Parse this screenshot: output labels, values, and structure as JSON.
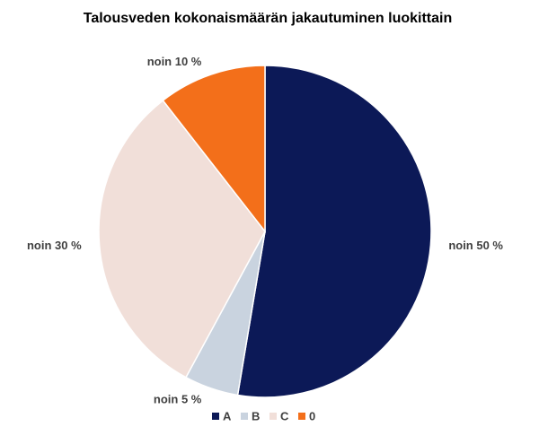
{
  "chart_data": {
    "type": "pie",
    "title": "Talousveden kokonaismäärän jakautuminen luokittain",
    "categories": [
      "A",
      "B",
      "C",
      "0"
    ],
    "values": [
      50,
      5,
      30,
      10
    ],
    "value_labels": [
      "noin 50 %",
      "noin 5 %",
      "noin 30 %",
      "noin 10 %"
    ],
    "colors": [
      "#0c1957",
      "#c9d3df",
      "#f1dfd9",
      "#f36f1a"
    ]
  }
}
